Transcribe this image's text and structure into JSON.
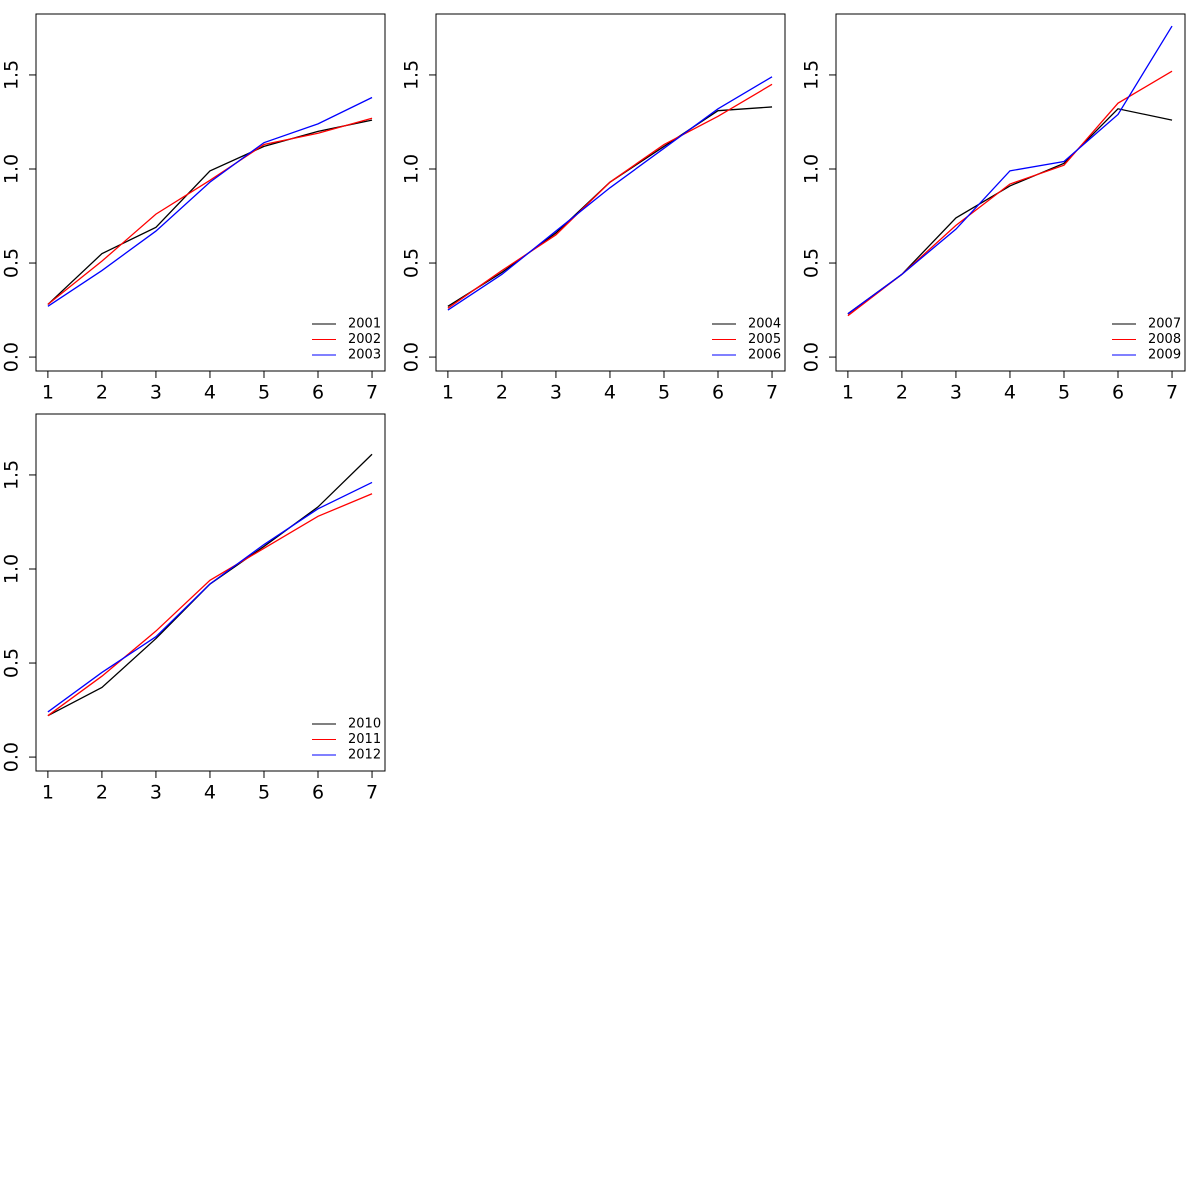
{
  "chart_data": [
    {
      "type": "line",
      "x": [
        1,
        2,
        3,
        4,
        5,
        6,
        7
      ],
      "series": [
        {
          "name": "2001",
          "color": "#000000",
          "values": [
            0.28,
            0.55,
            0.69,
            0.99,
            1.12,
            1.2,
            1.26
          ]
        },
        {
          "name": "2002",
          "color": "#ff0000",
          "values": [
            0.28,
            0.51,
            0.76,
            0.94,
            1.13,
            1.19,
            1.27
          ]
        },
        {
          "name": "2003",
          "color": "#0000ff",
          "values": [
            0.27,
            0.46,
            0.67,
            0.93,
            1.14,
            1.24,
            1.38
          ]
        }
      ],
      "xlim": [
        0.78,
        7.24
      ],
      "ylim": [
        -0.074,
        1.824
      ],
      "xticks": [
        1,
        2,
        3,
        4,
        5,
        6,
        7
      ],
      "yticks": [
        {
          "value": 0,
          "label": "0.0"
        },
        0.5,
        {
          "value": 1,
          "label": "1.0"
        },
        1.5
      ],
      "legend": "bottomright"
    },
    {
      "type": "line",
      "x": [
        1,
        2,
        3,
        4,
        5,
        6,
        7
      ],
      "series": [
        {
          "name": "2004",
          "color": "#000000",
          "values": [
            0.27,
            0.45,
            0.66,
            0.93,
            1.12,
            1.31,
            1.33
          ]
        },
        {
          "name": "2005",
          "color": "#ff0000",
          "values": [
            0.26,
            0.46,
            0.65,
            0.93,
            1.13,
            1.28,
            1.45
          ]
        },
        {
          "name": "2006",
          "color": "#0000ff",
          "values": [
            0.25,
            0.44,
            0.67,
            0.9,
            1.11,
            1.32,
            1.49
          ]
        }
      ],
      "xlim": [
        0.78,
        7.24
      ],
      "ylim": [
        -0.074,
        1.824
      ],
      "xticks": [
        1,
        2,
        3,
        4,
        5,
        6,
        7
      ],
      "yticks": [
        {
          "value": 0,
          "label": "0.0"
        },
        0.5,
        {
          "value": 1,
          "label": "1.0"
        },
        1.5
      ],
      "legend": "bottomright"
    },
    {
      "type": "line",
      "x": [
        1,
        2,
        3,
        4,
        5,
        6,
        7
      ],
      "series": [
        {
          "name": "2007",
          "color": "#000000",
          "values": [
            0.23,
            0.44,
            0.74,
            0.91,
            1.03,
            1.32,
            1.26
          ]
        },
        {
          "name": "2008",
          "color": "#ff0000",
          "values": [
            0.22,
            0.44,
            0.7,
            0.92,
            1.02,
            1.35,
            1.52
          ]
        },
        {
          "name": "2009",
          "color": "#0000ff",
          "values": [
            0.23,
            0.44,
            0.68,
            0.99,
            1.04,
            1.29,
            1.76
          ]
        }
      ],
      "xlim": [
        0.78,
        7.24
      ],
      "ylim": [
        -0.074,
        1.824
      ],
      "xticks": [
        1,
        2,
        3,
        4,
        5,
        6,
        7
      ],
      "yticks": [
        {
          "value": 0,
          "label": "0.0"
        },
        0.5,
        {
          "value": 1,
          "label": "1.0"
        },
        1.5
      ],
      "legend": "bottomright"
    },
    {
      "type": "line",
      "x": [
        1,
        2,
        3,
        4,
        5,
        6,
        7
      ],
      "series": [
        {
          "name": "2010",
          "color": "#000000",
          "values": [
            0.22,
            0.37,
            0.63,
            0.92,
            1.12,
            1.33,
            1.61
          ]
        },
        {
          "name": "2011",
          "color": "#ff0000",
          "values": [
            0.22,
            0.43,
            0.67,
            0.94,
            1.11,
            1.28,
            1.4
          ]
        },
        {
          "name": "2012",
          "color": "#0000ff",
          "values": [
            0.24,
            0.45,
            0.64,
            0.92,
            1.13,
            1.32,
            1.46
          ]
        }
      ],
      "xlim": [
        0.78,
        7.24
      ],
      "ylim": [
        -0.074,
        1.824
      ],
      "xticks": [
        1,
        2,
        3,
        4,
        5,
        6,
        7
      ],
      "yticks": [
        {
          "value": 0,
          "label": "0.0"
        },
        0.5,
        {
          "value": 1,
          "label": "1.0"
        },
        1.5
      ],
      "legend": "bottomright"
    }
  ]
}
